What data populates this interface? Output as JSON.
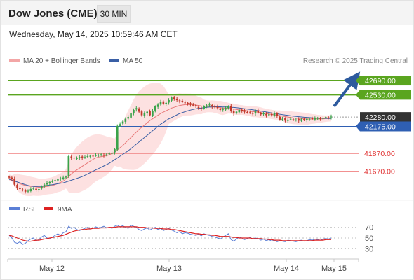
{
  "header": {
    "title": "Dow Jones (CME)",
    "timeframe": "30 MIN",
    "datetime": "Wednesday, May 14, 2025 10:59:46 AM CET"
  },
  "legend": {
    "bollinger_label": "MA 20 + Bollinger Bands",
    "ma50_label": "MA 50",
    "credit": "Research © 2025 Trading Central",
    "rsi_label": "RSI",
    "rsi_ma_label": "9MA"
  },
  "colors": {
    "up_candle": "#39a34a",
    "down_candle": "#c0392b",
    "resistance": "#5aa51f",
    "support": "#f08080",
    "pivot": "#2f5fb3",
    "current": "#333333",
    "ma50": "#3a5fa5",
    "ma20": "#e87878",
    "band_fill": "#fcd9d9",
    "rsi": "#5b7fd6",
    "rsi_ma": "#dd2222",
    "arrow": "#2d5a9e"
  },
  "chart_data": [
    {
      "type": "candlestick",
      "ylim": [
        41360,
        42840
      ],
      "x_ticks": [
        "May 12",
        "May 13",
        "May 14",
        "May 15"
      ],
      "price_levels": [
        {
          "label": "42690.00",
          "value": 42690,
          "kind": "resistance"
        },
        {
          "label": "42530.00",
          "value": 42530,
          "kind": "resistance"
        },
        {
          "label": "42280.00",
          "value": 42280,
          "kind": "current"
        },
        {
          "label": "42175.00",
          "value": 42175,
          "kind": "pivot"
        },
        {
          "label": "41870.00",
          "value": 41870,
          "kind": "support"
        },
        {
          "label": "41670.00",
          "value": 41670,
          "kind": "support"
        }
      ],
      "close": [
        41600,
        41580,
        41520,
        41480,
        41470,
        41460,
        41440,
        41450,
        41470,
        41480,
        41460,
        41470,
        41500,
        41520,
        41540,
        41550,
        41560,
        41570,
        41580,
        41590,
        41600,
        41610,
        41840,
        41820,
        41815,
        41820,
        41830,
        41825,
        41830,
        41840,
        41845,
        41840,
        41850,
        41855,
        41860,
        41850,
        41860,
        41870,
        41880,
        41920,
        42180,
        42200,
        42230,
        42260,
        42280,
        42320,
        42360,
        42380,
        42340,
        42300,
        42320,
        42340,
        42300,
        42350,
        42400,
        42420,
        42450,
        42430,
        42440,
        42470,
        42500,
        42480,
        42470,
        42460,
        42450,
        42440,
        42430,
        42420,
        42410,
        42400,
        42380,
        42370,
        42400,
        42410,
        42420,
        42400,
        42390,
        42380,
        42360,
        42370,
        42380,
        42400,
        42350,
        42320,
        42340,
        42360,
        42350,
        42340,
        42330,
        42330,
        42320,
        42350,
        42330,
        42310,
        42320,
        42300,
        42310,
        42300,
        42320,
        42290,
        42250,
        42260,
        42240,
        42250,
        42260,
        42250,
        42250,
        42240,
        42255,
        42250,
        42260,
        42260,
        42255,
        42265,
        42270,
        42260,
        42270,
        42280,
        42275,
        42285
      ],
      "ma20": [
        41600,
        41590,
        41570,
        41550,
        41530,
        41520,
        41510,
        41505,
        41500,
        41500,
        41495,
        41490,
        41490,
        41495,
        41500,
        41505,
        41510,
        41520,
        41535,
        41545,
        41560,
        41585,
        41610,
        41640,
        41665,
        41685,
        41705,
        41725,
        41745,
        41765,
        41785,
        41805,
        41820,
        41830,
        41835,
        41840,
        41845,
        41855,
        41870,
        41885,
        41910,
        41935,
        41960,
        41990,
        42020,
        42050,
        42080,
        42110,
        42140,
        42165,
        42190,
        42215,
        42240,
        42260,
        42280,
        42300,
        42320,
        42335,
        42350,
        42365,
        42380,
        42390,
        42400,
        42410,
        42415,
        42420,
        42420,
        42420,
        42420,
        42415,
        42410,
        42405,
        42400,
        42400,
        42400,
        42400,
        42395,
        42390,
        42385,
        42380,
        42380,
        42380,
        42375,
        42370,
        42365,
        42360,
        42360,
        42355,
        42350,
        42345,
        42340,
        42340,
        42335,
        42330,
        42325,
        42320,
        42315,
        42310,
        42305,
        42300,
        42295,
        42290,
        42285,
        42280,
        42275,
        42270,
        42268,
        42265,
        42262,
        42260,
        42258,
        42258,
        42258,
        42258,
        42258,
        42259,
        42260,
        42262,
        42264,
        42266
      ],
      "ma50": [
        41580,
        41570,
        41560,
        41550,
        41540,
        41530,
        41520,
        41510,
        41505,
        41500,
        41500,
        41500,
        41500,
        41505,
        41510,
        41515,
        41520,
        41525,
        41530,
        41535,
        41540,
        41550,
        41560,
        41570,
        41580,
        41590,
        41600,
        41610,
        41625,
        41640,
        41655,
        41670,
        41685,
        41700,
        41715,
        41730,
        41745,
        41760,
        41780,
        41800,
        41820,
        41840,
        41860,
        41880,
        41900,
        41925,
        41950,
        41975,
        42000,
        42025,
        42050,
        42075,
        42100,
        42125,
        42150,
        42175,
        42200,
        42220,
        42240,
        42260,
        42275,
        42290,
        42305,
        42320,
        42330,
        42340,
        42350,
        42358,
        42366,
        42372,
        42378,
        42382,
        42386,
        42390,
        42392,
        42394,
        42395,
        42395,
        42395,
        42394,
        42393,
        42392,
        42390,
        42388,
        42385,
        42382,
        42378,
        42374,
        42370,
        42366,
        42362,
        42357,
        42352,
        42347,
        42342,
        42337,
        42332,
        42327,
        42322,
        42317,
        42312,
        42307,
        42302,
        42298,
        42294,
        42290,
        42287,
        42284,
        42281,
        42278,
        42276,
        42274,
        42272,
        42270,
        42268,
        42267,
        42266,
        42265,
        42264,
        42264
      ]
    },
    {
      "type": "line",
      "ylim": [
        16,
        84
      ],
      "y_ticks": [
        "70",
        "50",
        "30"
      ],
      "series": [
        {
          "name": "RSI",
          "values": [
            55,
            50,
            42,
            40,
            43,
            38,
            40,
            45,
            48,
            50,
            45,
            47,
            52,
            55,
            50,
            48,
            52,
            55,
            58,
            55,
            60,
            62,
            72,
            68,
            70,
            66,
            64,
            66,
            68,
            70,
            67,
            68,
            71,
            69,
            70,
            72,
            69,
            70,
            68,
            72,
            74,
            71,
            73,
            70,
            68,
            74,
            72,
            70,
            66,
            64,
            67,
            69,
            65,
            68,
            70,
            66,
            68,
            64,
            66,
            68,
            65,
            63,
            60,
            62,
            58,
            60,
            59,
            57,
            56,
            55,
            57,
            54,
            58,
            56,
            55,
            53,
            52,
            50,
            48,
            52,
            55,
            58,
            47,
            44,
            48,
            52,
            50,
            47,
            49,
            51,
            48,
            50,
            49,
            46,
            48,
            45,
            47,
            44,
            46,
            43,
            45,
            44,
            43,
            46,
            45,
            44,
            43,
            45,
            46,
            44,
            45,
            47,
            46,
            48,
            47,
            46,
            48,
            49,
            48,
            50
          ]
        },
        {
          "name": "9MA",
          "values": [
            55,
            54,
            52,
            50,
            48,
            46,
            45,
            44,
            44,
            45,
            46,
            46,
            47,
            48,
            49,
            50,
            51,
            52,
            53,
            54,
            55,
            57,
            59,
            61,
            63,
            64,
            65,
            66,
            66,
            67,
            67,
            68,
            68,
            68,
            69,
            69,
            69,
            70,
            70,
            70,
            71,
            71,
            71,
            71,
            71,
            71,
            71,
            71,
            70,
            70,
            70,
            69,
            69,
            69,
            68,
            68,
            68,
            67,
            67,
            67,
            66,
            66,
            65,
            64,
            63,
            62,
            61,
            60,
            59,
            58,
            58,
            57,
            57,
            56,
            56,
            55,
            55,
            54,
            53,
            53,
            53,
            53,
            52,
            51,
            51,
            50,
            50,
            50,
            50,
            50,
            49,
            49,
            49,
            49,
            48,
            48,
            47,
            47,
            46,
            46,
            46,
            45,
            45,
            45,
            45,
            45,
            45,
            45,
            45,
            45,
            45,
            45,
            45,
            46,
            46,
            46,
            46,
            47,
            47,
            47
          ]
        }
      ]
    }
  ]
}
